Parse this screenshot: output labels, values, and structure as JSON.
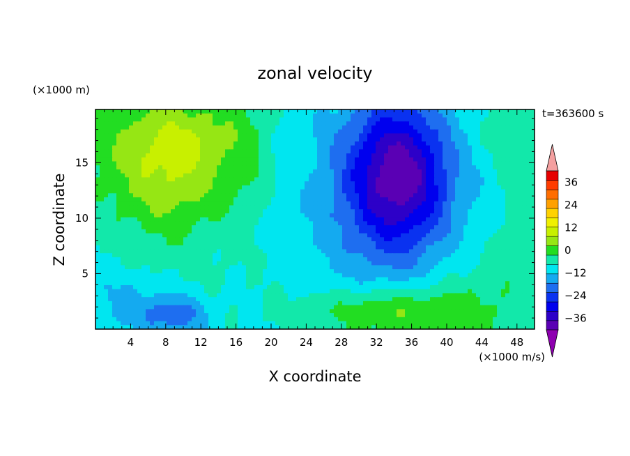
{
  "chart_data": {
    "type": "heatmap",
    "title": "zonal velocity",
    "xlabel": "X coordinate",
    "ylabel": "Z coordinate",
    "x_unit": "(×1000 m/s)",
    "y_unit": "(×1000 m)",
    "time_label": "t=363600 s",
    "xlim": [
      0,
      50
    ],
    "ylim": [
      0,
      19.8
    ],
    "x_ticks": [
      4,
      8,
      12,
      16,
      20,
      24,
      28,
      32,
      36,
      40,
      44,
      48
    ],
    "y_ticks": [
      5,
      10,
      15
    ],
    "x_tick_labels": [
      "4",
      "8",
      "12",
      "16",
      "20",
      "24",
      "28",
      "32",
      "36",
      "40",
      "44",
      "48"
    ],
    "y_tick_labels": [
      "5",
      "10",
      "15"
    ],
    "colorbar": {
      "min": -42,
      "max": 42,
      "step": 6,
      "tick_values": [
        36,
        24,
        12,
        0,
        -12,
        -24,
        -36
      ],
      "tick_labels": [
        "36",
        "24",
        "12",
        "0",
        "−12",
        "−24",
        "−36"
      ],
      "over_color": "#f4a0a0",
      "under_color": "#8e00b0",
      "colors": [
        "#5a00b4",
        "#2d00c8",
        "#0000ee",
        "#0a32f0",
        "#1e6ef0",
        "#14aaf0",
        "#00e6f0",
        "#12e8aa",
        "#22dd22",
        "#96e614",
        "#c8f000",
        "#f0f000",
        "#ffd200",
        "#ffa000",
        "#ff6e00",
        "#ff3c00",
        "#e60000"
      ]
    },
    "grid": false
  }
}
